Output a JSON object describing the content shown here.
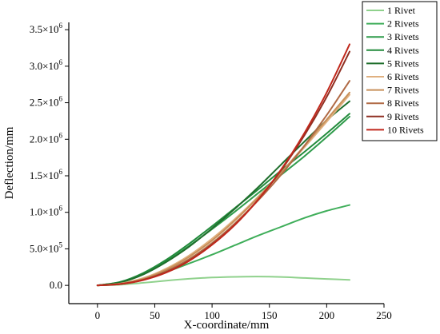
{
  "chart_data": {
    "type": "line",
    "xlabel": "X-coordinate/mm",
    "ylabel": "Deflection/mm",
    "xlim": [
      -25,
      250
    ],
    "ylim": [
      -250000,
      3600000
    ],
    "x_ticks": [
      0,
      50,
      100,
      150,
      200,
      250
    ],
    "x_tick_labels": [
      "0",
      "50",
      "100",
      "150",
      "200",
      "250"
    ],
    "y_ticks": [
      0,
      500000,
      1000000,
      1500000,
      2000000,
      2500000,
      3000000,
      3500000
    ],
    "y_tick_labels": [
      {
        "mantissa": "0.0",
        "exp": ""
      },
      {
        "mantissa": "5.0×10",
        "exp": "5"
      },
      {
        "mantissa": "1.0×10",
        "exp": "6"
      },
      {
        "mantissa": "1.5×10",
        "exp": "6"
      },
      {
        "mantissa": "2.0×10",
        "exp": "6"
      },
      {
        "mantissa": "2.5×10",
        "exp": "6"
      },
      {
        "mantissa": "3.0×10",
        "exp": "6"
      },
      {
        "mantissa": "3.5×10",
        "exp": "6"
      }
    ],
    "grid": false,
    "legend_position": "top-right",
    "x": [
      0,
      20,
      40,
      60,
      80,
      100,
      120,
      140,
      160,
      180,
      200,
      220
    ],
    "series": [
      {
        "name": "1 Rivet",
        "color": "#8fd18c",
        "values": [
          0,
          10000,
          35000,
          65000,
          90000,
          108000,
          117000,
          120000,
          115000,
          102000,
          88000,
          75000
        ]
      },
      {
        "name": "2 Rivets",
        "color": "#3fae5a",
        "values": [
          0,
          25000,
          90000,
          185000,
          300000,
          420000,
          550000,
          680000,
          800000,
          920000,
          1020000,
          1100000
        ]
      },
      {
        "name": "3 Rivets",
        "color": "#2e9b4a",
        "values": [
          0,
          45000,
          160000,
          330000,
          540000,
          770000,
          1010000,
          1260000,
          1510000,
          1760000,
          2030000,
          2310000
        ]
      },
      {
        "name": "4 Rivets",
        "color": "#228b3c",
        "values": [
          0,
          48000,
          170000,
          350000,
          570000,
          810000,
          1060000,
          1310000,
          1570000,
          1820000,
          2080000,
          2350000
        ]
      },
      {
        "name": "5 Rivets",
        "color": "#1f6e2c",
        "values": [
          0,
          40000,
          150000,
          320000,
          530000,
          780000,
          1050000,
          1340000,
          1650000,
          1960000,
          2260000,
          2520000
        ]
      },
      {
        "name": "6 Rivets",
        "color": "#e0b080",
        "values": [
          0,
          25000,
          100000,
          230000,
          410000,
          640000,
          910000,
          1210000,
          1540000,
          1880000,
          2240000,
          2610000
        ]
      },
      {
        "name": "7 Rivets",
        "color": "#c8905a",
        "values": [
          0,
          22000,
          90000,
          215000,
          390000,
          615000,
          890000,
          1200000,
          1540000,
          1900000,
          2270000,
          2640000
        ]
      },
      {
        "name": "8 Rivets",
        "color": "#b06a45",
        "values": [
          0,
          20000,
          80000,
          195000,
          360000,
          580000,
          850000,
          1160000,
          1510000,
          1900000,
          2330000,
          2800000
        ]
      },
      {
        "name": "9 Rivets",
        "color": "#8f2f22",
        "values": [
          0,
          18000,
          75000,
          180000,
          340000,
          560000,
          830000,
          1170000,
          1570000,
          2040000,
          2580000,
          3200000
        ]
      },
      {
        "name": "10 Rivets",
        "color": "#c0281c",
        "values": [
          0,
          18000,
          73000,
          175000,
          335000,
          555000,
          830000,
          1170000,
          1580000,
          2070000,
          2640000,
          3300000
        ]
      }
    ]
  }
}
